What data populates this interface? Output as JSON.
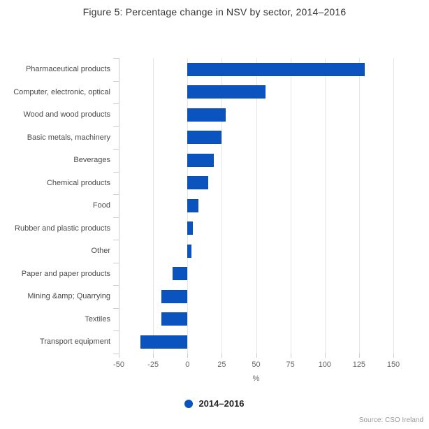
{
  "title": "Figure 5: Percentage change in NSV by sector, 2014–2016",
  "chart_data": {
    "type": "bar",
    "orientation": "horizontal",
    "categories": [
      "Pharmaceutical products",
      "Computer, electronic, optical",
      "Wood and wood products",
      "Basic metals, machinery",
      "Beverages",
      "Chemical products",
      "Food",
      "Rubber and plastic products",
      "Other",
      "Paper and paper products",
      "Mining &amp; Quarrying",
      "Textiles",
      "Transport equipment"
    ],
    "series": [
      {
        "name": "2014–2016",
        "values": [
          129,
          57,
          28,
          25,
          19,
          15,
          8,
          4,
          3,
          -11,
          -19,
          -19,
          -34
        ]
      }
    ],
    "xlabel": "%",
    "xlim": [
      -50,
      150
    ],
    "xticks": [
      -50,
      -25,
      0,
      25,
      50,
      75,
      100,
      125,
      150
    ],
    "grid": "vertical-only",
    "legend_position": "bottom-center",
    "bar_color": "#0b53be"
  },
  "legend": {
    "label": "2014–2016",
    "marker_color": "#0b53be"
  },
  "source": "Source: CSO Ireland",
  "colors": {
    "bar": "#0b53be",
    "grid": "#e6e6e6",
    "axis": "#cccccc",
    "title_text": "#333333",
    "category_text": "#4a4a4a",
    "tick_text": "#666666",
    "source_text": "#999999"
  }
}
